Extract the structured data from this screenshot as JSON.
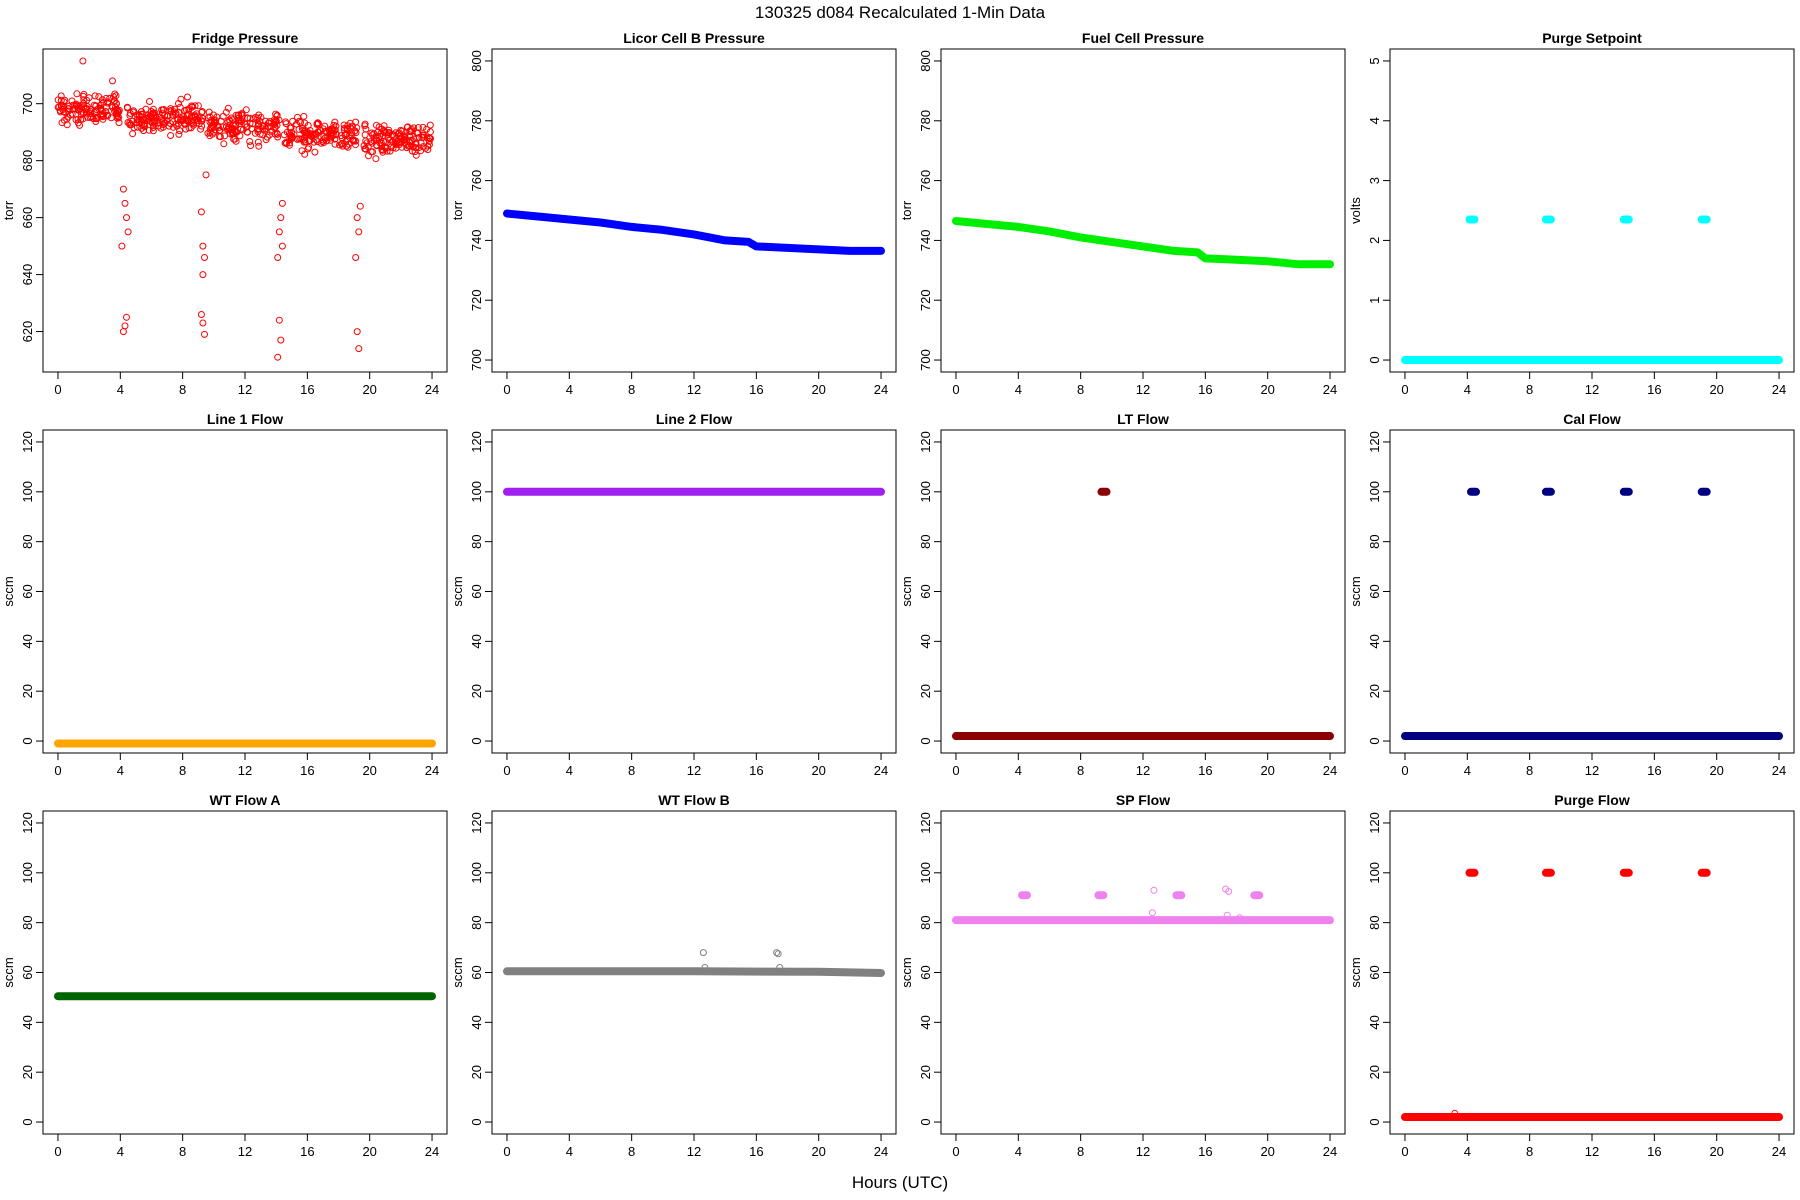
{
  "title": "130325   d084   Recalculated 1-Min Data",
  "xlabel": "Hours (UTC)",
  "chart_data": [
    {
      "type": "scatter",
      "title": "Fridge Pressure",
      "ylabel": "torr",
      "xlim": [
        0,
        24
      ],
      "ylim": [
        610,
        715
      ],
      "xticks": [
        0,
        4,
        8,
        12,
        16,
        20,
        24
      ],
      "yticks": [
        620,
        640,
        660,
        680,
        700
      ],
      "color": "#ff0000",
      "marker": "open-circle",
      "segments": [
        {
          "x0": 0,
          "x1": 4,
          "y": 698,
          "spread": 9
        },
        {
          "x0": 4.4,
          "x1": 9.3,
          "y": 695,
          "spread": 9
        },
        {
          "x0": 9.6,
          "x1": 14.2,
          "y": 692,
          "spread": 9
        },
        {
          "x0": 14.5,
          "x1": 19.2,
          "y": 689,
          "spread": 9
        },
        {
          "x0": 19.5,
          "x1": 24,
          "y": 687,
          "spread": 9
        }
      ],
      "points": [
        [
          4.1,
          650
        ],
        [
          4.2,
          670
        ],
        [
          4.3,
          665
        ],
        [
          4.4,
          660
        ],
        [
          4.3,
          622
        ],
        [
          4.2,
          620
        ],
        [
          4.4,
          625
        ],
        [
          4.5,
          655
        ],
        [
          9.2,
          662
        ],
        [
          9.3,
          650
        ],
        [
          9.4,
          646
        ],
        [
          9.3,
          640
        ],
        [
          9.2,
          626
        ],
        [
          9.3,
          623
        ],
        [
          9.4,
          619
        ],
        [
          9.5,
          675
        ],
        [
          14.1,
          646
        ],
        [
          14.2,
          655
        ],
        [
          14.3,
          660
        ],
        [
          14.4,
          665
        ],
        [
          14.2,
          624
        ],
        [
          14.3,
          617
        ],
        [
          14.1,
          611
        ],
        [
          14.4,
          650
        ],
        [
          19.2,
          660
        ],
        [
          19.3,
          655
        ],
        [
          19.1,
          646
        ],
        [
          19.2,
          620
        ],
        [
          19.3,
          614
        ],
        [
          19.4,
          664
        ],
        [
          1.6,
          715
        ],
        [
          3.5,
          708
        ]
      ]
    },
    {
      "type": "line",
      "title": "Licor Cell B Pressure",
      "ylabel": "torr",
      "xlim": [
        0,
        24
      ],
      "ylim": [
        700,
        800
      ],
      "xticks": [
        0,
        4,
        8,
        12,
        16,
        20,
        24
      ],
      "yticks": [
        700,
        720,
        740,
        760,
        780,
        800
      ],
      "color": "#0000ff",
      "x": [
        0,
        2,
        4,
        6,
        8,
        10,
        12,
        14,
        15.5,
        16,
        18,
        20,
        22,
        24
      ],
      "y": [
        749,
        748,
        747,
        746,
        744.5,
        743.5,
        742,
        740,
        739.5,
        738,
        737.5,
        737,
        736.5,
        736.5
      ]
    },
    {
      "type": "line",
      "title": "Fuel Cell Pressure",
      "ylabel": "torr",
      "xlim": [
        0,
        24
      ],
      "ylim": [
        700,
        800
      ],
      "xticks": [
        0,
        4,
        8,
        12,
        16,
        20,
        24
      ],
      "yticks": [
        700,
        720,
        740,
        760,
        780,
        800
      ],
      "color": "#00ee00",
      "x": [
        0,
        2,
        4,
        6,
        8,
        10,
        12,
        14,
        15.5,
        16,
        18,
        20,
        22,
        24
      ],
      "y": [
        746.5,
        745.5,
        744.5,
        743,
        741,
        739.5,
        738,
        736.5,
        736,
        734,
        733.5,
        733,
        732,
        732
      ]
    },
    {
      "type": "scatter",
      "title": "Purge Setpoint",
      "ylabel": "volts",
      "xlim": [
        0,
        24
      ],
      "ylim": [
        0,
        5
      ],
      "xticks": [
        0,
        4,
        8,
        12,
        16,
        20,
        24
      ],
      "yticks": [
        0,
        1,
        2,
        3,
        4,
        5
      ],
      "color": "#00ffff",
      "baseline": {
        "x0": 0,
        "x1": 24,
        "y": 0
      },
      "clusters": [
        {
          "x": 4.3,
          "y": 2.35
        },
        {
          "x": 9.2,
          "y": 2.35
        },
        {
          "x": 14.2,
          "y": 2.35
        },
        {
          "x": 19.2,
          "y": 2.35
        }
      ]
    },
    {
      "type": "line",
      "title": "Line 1 Flow",
      "ylabel": "sccm",
      "xlim": [
        0,
        24
      ],
      "ylim": [
        0,
        120
      ],
      "xticks": [
        0,
        4,
        8,
        12,
        16,
        20,
        24
      ],
      "yticks": [
        0,
        20,
        40,
        60,
        80,
        100,
        120
      ],
      "color": "#ffa500",
      "x": [
        0,
        24
      ],
      "y": [
        -1,
        -1
      ]
    },
    {
      "type": "line",
      "title": "Line 2 Flow",
      "ylabel": "sccm",
      "xlim": [
        0,
        24
      ],
      "ylim": [
        0,
        120
      ],
      "xticks": [
        0,
        4,
        8,
        12,
        16,
        20,
        24
      ],
      "yticks": [
        0,
        20,
        40,
        60,
        80,
        100,
        120
      ],
      "color": "#a020f0",
      "x": [
        0,
        24
      ],
      "y": [
        100,
        100
      ]
    },
    {
      "type": "scatter",
      "title": "LT Flow",
      "ylabel": "sccm",
      "xlim": [
        0,
        24
      ],
      "ylim": [
        0,
        120
      ],
      "xticks": [
        0,
        4,
        8,
        12,
        16,
        20,
        24
      ],
      "yticks": [
        0,
        20,
        40,
        60,
        80,
        100,
        120
      ],
      "color": "#8b0000",
      "baseline": {
        "x0": 0,
        "x1": 24,
        "y": 2
      },
      "clusters": [
        {
          "x": 9.5,
          "y": 100
        }
      ]
    },
    {
      "type": "scatter",
      "title": "Cal Flow",
      "ylabel": "sccm",
      "xlim": [
        0,
        24
      ],
      "ylim": [
        0,
        120
      ],
      "xticks": [
        0,
        4,
        8,
        12,
        16,
        20,
        24
      ],
      "yticks": [
        0,
        20,
        40,
        60,
        80,
        100,
        120
      ],
      "color": "#000080",
      "baseline": {
        "x0": 0,
        "x1": 24,
        "y": 2
      },
      "clusters": [
        {
          "x": 4.4,
          "y": 100
        },
        {
          "x": 9.2,
          "y": 100
        },
        {
          "x": 14.2,
          "y": 100
        },
        {
          "x": 19.2,
          "y": 100
        }
      ]
    },
    {
      "type": "line",
      "title": "WT Flow A",
      "ylabel": "sccm",
      "xlim": [
        0,
        24
      ],
      "ylim": [
        0,
        120
      ],
      "xticks": [
        0,
        4,
        8,
        12,
        16,
        20,
        24
      ],
      "yticks": [
        0,
        20,
        40,
        60,
        80,
        100,
        120
      ],
      "color": "#006400",
      "x": [
        0,
        24
      ],
      "y": [
        50.5,
        50.5
      ]
    },
    {
      "type": "line",
      "title": "WT Flow B",
      "ylabel": "sccm",
      "xlim": [
        0,
        24
      ],
      "ylim": [
        0,
        120
      ],
      "xticks": [
        0,
        4,
        8,
        12,
        16,
        20,
        24
      ],
      "yticks": [
        0,
        20,
        40,
        60,
        80,
        100,
        120
      ],
      "color": "#808080",
      "x": [
        0,
        12,
        20,
        24
      ],
      "y": [
        60.5,
        60.5,
        60.3,
        59.8
      ],
      "outliers": [
        [
          12.6,
          68
        ],
        [
          12.7,
          62
        ],
        [
          17.3,
          68
        ],
        [
          17.4,
          67.5
        ],
        [
          17.5,
          62
        ]
      ]
    },
    {
      "type": "scatter",
      "title": "SP Flow",
      "ylabel": "sccm",
      "xlim": [
        0,
        24
      ],
      "ylim": [
        0,
        120
      ],
      "xticks": [
        0,
        4,
        8,
        12,
        16,
        20,
        24
      ],
      "yticks": [
        0,
        20,
        40,
        60,
        80,
        100,
        120
      ],
      "color": "#ee82ee",
      "baseline": {
        "x0": 0,
        "x1": 24,
        "y": 81
      },
      "clusters": [
        {
          "x": 4.4,
          "y": 91
        },
        {
          "x": 9.3,
          "y": 91
        },
        {
          "x": 14.3,
          "y": 91
        },
        {
          "x": 19.3,
          "y": 91
        }
      ],
      "outliers": [
        [
          12.7,
          93
        ],
        [
          12.6,
          84
        ],
        [
          17.3,
          93.5
        ],
        [
          17.5,
          92.5
        ],
        [
          17.4,
          83
        ],
        [
          18.2,
          82
        ]
      ]
    },
    {
      "type": "scatter",
      "title": "Purge Flow",
      "ylabel": "sccm",
      "xlim": [
        0,
        24
      ],
      "ylim": [
        0,
        120
      ],
      "xticks": [
        0,
        4,
        8,
        12,
        16,
        20,
        24
      ],
      "yticks": [
        0,
        20,
        40,
        60,
        80,
        100,
        120
      ],
      "color": "#ff0000",
      "baseline": {
        "x0": 0,
        "x1": 24,
        "y": 2
      },
      "clusters": [
        {
          "x": 4.3,
          "y": 100
        },
        {
          "x": 9.2,
          "y": 100
        },
        {
          "x": 14.2,
          "y": 100
        },
        {
          "x": 19.2,
          "y": 100
        }
      ],
      "outliers": [
        [
          3.2,
          3.5
        ]
      ]
    }
  ]
}
